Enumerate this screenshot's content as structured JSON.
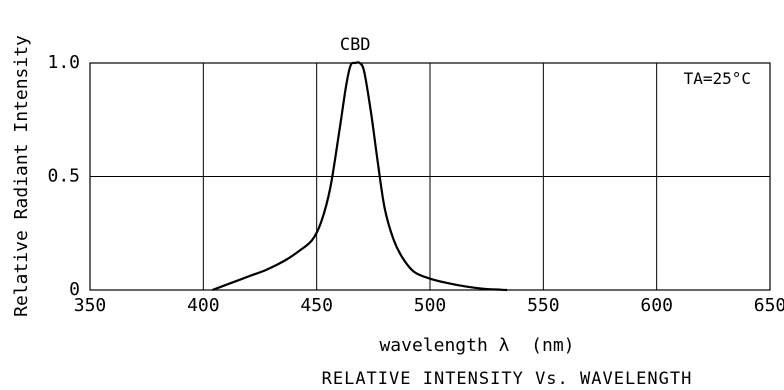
{
  "chart_data": {
    "type": "line",
    "title": "RELATIVE INTENSITY Vs. WAVELENGTH",
    "xlabel": "wavelength λ  (nm)",
    "ylabel": "Relative Radiant Intensity",
    "xlim": [
      350,
      650
    ],
    "ylim": [
      0,
      1.0
    ],
    "x_ticks": [
      "350",
      "400",
      "450",
      "500",
      "550",
      "600",
      "650"
    ],
    "x_tick_values": [
      350,
      400,
      450,
      500,
      550,
      600,
      650
    ],
    "y_ticks": [
      "0",
      "0.5",
      "1.0"
    ],
    "y_tick_values": [
      0,
      0.5,
      1.0
    ],
    "grid": true,
    "annotation": "TA=25°C",
    "series": [
      {
        "name": "CBD",
        "color": "#000000",
        "x": [
          404,
          412,
          420,
          428,
          436,
          442,
          448,
          452,
          456,
          460,
          463,
          465,
          467,
          469,
          471,
          474,
          477,
          480,
          484,
          488,
          493,
          500,
          508,
          516,
          524,
          534
        ],
        "y": [
          0.0,
          0.03,
          0.06,
          0.09,
          0.13,
          0.17,
          0.22,
          0.3,
          0.45,
          0.7,
          0.9,
          0.99,
          1.0,
          1.0,
          0.96,
          0.78,
          0.56,
          0.36,
          0.22,
          0.14,
          0.08,
          0.05,
          0.03,
          0.015,
          0.005,
          0.0
        ]
      }
    ]
  }
}
